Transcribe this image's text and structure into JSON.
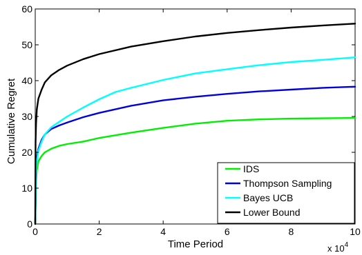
{
  "chart_data": {
    "type": "line",
    "title": "",
    "xlabel": "Time Period",
    "ylabel": "Cumulative Regret",
    "x_exponent_label": "x 10",
    "x_exponent_power": "4",
    "xlim": [
      0,
      100000
    ],
    "ylim": [
      0,
      60
    ],
    "x_ticks": [
      0,
      20000,
      40000,
      60000,
      80000,
      100000
    ],
    "x_tick_labels": [
      "0",
      "2",
      "4",
      "6",
      "8",
      "10"
    ],
    "y_ticks": [
      0,
      10,
      20,
      30,
      40,
      50,
      60
    ],
    "y_tick_labels": [
      "0",
      "10",
      "20",
      "30",
      "40",
      "50",
      "60"
    ],
    "grid": false,
    "legend_position": "bottom-right",
    "series": [
      {
        "name": "IDS",
        "color": "#00ee00",
        "x": [
          0,
          250,
          500,
          1000,
          2000,
          3000,
          5000,
          7500,
          10000,
          15000,
          20000,
          30000,
          40000,
          50000,
          60000,
          70000,
          80000,
          90000,
          100000
        ],
        "y": [
          0,
          12,
          15,
          17.5,
          19,
          20,
          21,
          21.8,
          22.3,
          23,
          24,
          25.5,
          26.8,
          28,
          28.8,
          29.2,
          29.4,
          29.5,
          29.6
        ]
      },
      {
        "name": "Thompson Sampling",
        "color": "#0000dd",
        "x": [
          0,
          250,
          500,
          1000,
          2000,
          3000,
          5000,
          7500,
          10000,
          15000,
          20000,
          30000,
          40000,
          50000,
          60000,
          70000,
          80000,
          90000,
          100000
        ],
        "y": [
          0,
          15,
          18.5,
          21,
          23.5,
          25,
          26.5,
          27.5,
          28.3,
          29.8,
          31,
          33,
          34.5,
          35.5,
          36.3,
          37,
          37.5,
          38,
          38.3
        ]
      },
      {
        "name": "Bayes UCB",
        "color": "#00ffff",
        "x": [
          0,
          250,
          500,
          1000,
          2000,
          3000,
          5000,
          7500,
          10000,
          15000,
          20000,
          25000,
          30000,
          40000,
          50000,
          60000,
          70000,
          80000,
          90000,
          100000
        ],
        "y": [
          0,
          14,
          17.5,
          20.5,
          23,
          25,
          27,
          28.5,
          30,
          32.5,
          34.8,
          36.8,
          38,
          40.2,
          42,
          43.2,
          44.3,
          45.2,
          45.8,
          46.5
        ]
      },
      {
        "name": "Lower Bound",
        "color": "#000000",
        "x": [
          0,
          100,
          250,
          500,
          1000,
          2000,
          3000,
          5000,
          7500,
          10000,
          15000,
          20000,
          30000,
          40000,
          50000,
          60000,
          70000,
          80000,
          90000,
          100000
        ],
        "y": [
          0,
          23,
          28,
          32,
          35,
          37.5,
          39.5,
          41.5,
          43,
          44.2,
          46,
          47.4,
          49.5,
          51,
          52.3,
          53.3,
          54.1,
          54.8,
          55.4,
          55.9
        ]
      }
    ]
  }
}
